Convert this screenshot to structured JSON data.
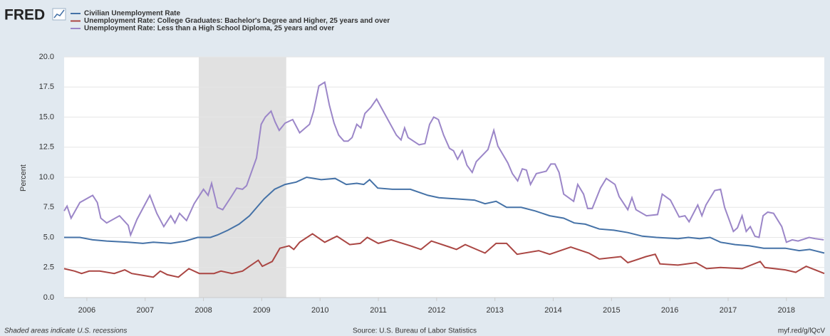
{
  "chart_data": {
    "type": "line",
    "logo": "FRED",
    "y_label": "Percent",
    "annotations": [
      "Shaded areas indicate U.S. recessions",
      "Source: U.S. Bureau of Labor Statistics",
      "myf.red/g/lQcV"
    ],
    "xlim": [
      2005.61,
      2018.65
    ],
    "xticks": [
      2006,
      2007,
      2008,
      2009,
      2010,
      2011,
      2012,
      2013,
      2014,
      2015,
      2016,
      2017,
      2018
    ],
    "ylim": [
      0,
      20
    ],
    "yticks": [
      {
        "value": 0,
        "label": "0.0"
      },
      {
        "value": 2.5,
        "label": "2.5"
      },
      {
        "value": 5,
        "label": "5.0"
      },
      {
        "value": 7.5,
        "label": "7.5"
      },
      {
        "value": 10,
        "label": "10.0"
      },
      {
        "value": 12.5,
        "label": "12.5"
      },
      {
        "value": 15,
        "label": "15.0"
      },
      {
        "value": 17.5,
        "label": "17.5"
      },
      {
        "value": 20,
        "label": "20.0"
      }
    ],
    "grid": true,
    "recessions": [
      [
        2007.92,
        2009.42
      ]
    ],
    "series": [
      {
        "name": "Civilian Unemployment Rate",
        "color": "#4572a7",
        "x": [
          2005.61,
          2005.88,
          2006.1,
          2006.34,
          2006.71,
          2006.96,
          2007.14,
          2007.44,
          2007.69,
          2007.9,
          2008.12,
          2008.24,
          2008.42,
          2008.61,
          2008.79,
          2009.04,
          2009.22,
          2009.4,
          2009.59,
          2009.77,
          2010.02,
          2010.26,
          2010.45,
          2010.63,
          2010.75,
          2010.85,
          2010.99,
          2011.24,
          2011.55,
          2011.85,
          2012.04,
          2012.34,
          2012.65,
          2012.83,
          2013.02,
          2013.2,
          2013.45,
          2013.69,
          2013.94,
          2014.18,
          2014.36,
          2014.55,
          2014.79,
          2015.04,
          2015.28,
          2015.53,
          2015.77,
          2016.14,
          2016.32,
          2016.51,
          2016.69,
          2016.87,
          2017.12,
          2017.36,
          2017.61,
          2017.98,
          2018.22,
          2018.4,
          2018.65
        ],
        "values": [
          5.0,
          5.0,
          4.8,
          4.7,
          4.6,
          4.5,
          4.6,
          4.5,
          4.7,
          5.0,
          5.0,
          5.2,
          5.6,
          6.1,
          6.8,
          8.2,
          9.0,
          9.4,
          9.6,
          10.0,
          9.8,
          9.9,
          9.4,
          9.5,
          9.4,
          9.8,
          9.1,
          9.0,
          9.0,
          8.5,
          8.3,
          8.2,
          8.1,
          7.8,
          8.0,
          7.5,
          7.5,
          7.2,
          6.8,
          6.6,
          6.2,
          6.1,
          5.7,
          5.6,
          5.4,
          5.1,
          5.0,
          4.9,
          5.0,
          4.9,
          5.0,
          4.6,
          4.4,
          4.3,
          4.1,
          4.1,
          3.9,
          4.0,
          3.7
        ]
      },
      {
        "name": "Unemployment Rate: College Graduates: Bachelor's Degree and Higher, 25 years and over",
        "color": "#aa4643",
        "x": [
          2005.61,
          2005.79,
          2005.91,
          2006.04,
          2006.22,
          2006.47,
          2006.65,
          2006.77,
          2007.02,
          2007.14,
          2007.26,
          2007.38,
          2007.57,
          2007.75,
          2007.93,
          2008.18,
          2008.3,
          2008.49,
          2008.67,
          2008.94,
          2009.01,
          2009.18,
          2009.31,
          2009.47,
          2009.55,
          2009.65,
          2009.87,
          2010.08,
          2010.29,
          2010.51,
          2010.69,
          2010.81,
          2011.0,
          2011.22,
          2011.55,
          2011.73,
          2011.91,
          2012.22,
          2012.34,
          2012.49,
          2012.83,
          2013.02,
          2013.2,
          2013.38,
          2013.75,
          2013.94,
          2014.3,
          2014.61,
          2014.79,
          2015.16,
          2015.28,
          2015.59,
          2015.75,
          2015.83,
          2016.14,
          2016.45,
          2016.63,
          2016.87,
          2017.24,
          2017.55,
          2017.63,
          2017.98,
          2018.16,
          2018.34,
          2018.65
        ],
        "values": [
          2.4,
          2.2,
          2.0,
          2.2,
          2.2,
          2.0,
          2.3,
          2.0,
          1.8,
          1.7,
          2.2,
          1.9,
          1.7,
          2.4,
          2.0,
          2.0,
          2.2,
          2.0,
          2.2,
          3.1,
          2.6,
          3.0,
          4.1,
          4.3,
          4.0,
          4.6,
          5.3,
          4.6,
          5.1,
          4.4,
          4.5,
          5.0,
          4.5,
          4.8,
          4.3,
          4.0,
          4.7,
          4.2,
          4.0,
          4.4,
          3.7,
          4.5,
          4.5,
          3.6,
          3.9,
          3.6,
          4.2,
          3.7,
          3.2,
          3.4,
          2.9,
          3.4,
          3.6,
          2.8,
          2.7,
          2.9,
          2.4,
          2.5,
          2.4,
          3.0,
          2.5,
          2.3,
          2.1,
          2.6,
          2.0
        ]
      },
      {
        "name": "Unemployment Rate: Less than a High School Diploma, 25 years and over",
        "color": "#9b86c8",
        "x": [
          2005.61,
          2005.66,
          2005.73,
          2005.88,
          2006.1,
          2006.18,
          2006.24,
          2006.34,
          2006.56,
          2006.71,
          2006.75,
          2006.86,
          2007.08,
          2007.2,
          2007.32,
          2007.44,
          2007.51,
          2007.59,
          2007.71,
          2007.84,
          2008.0,
          2008.08,
          2008.14,
          2008.24,
          2008.33,
          2008.48,
          2008.57,
          2008.67,
          2008.74,
          2008.91,
          2008.99,
          2009.06,
          2009.16,
          2009.23,
          2009.3,
          2009.4,
          2009.53,
          2009.65,
          2009.82,
          2009.89,
          2009.98,
          2010.08,
          2010.16,
          2010.24,
          2010.32,
          2010.41,
          2010.48,
          2010.55,
          2010.63,
          2010.7,
          2010.77,
          2010.87,
          2010.97,
          2011.14,
          2011.31,
          2011.39,
          2011.45,
          2011.51,
          2011.7,
          2011.8,
          2011.88,
          2011.95,
          2012.03,
          2012.12,
          2012.22,
          2012.29,
          2012.36,
          2012.44,
          2012.52,
          2012.61,
          2012.68,
          2012.88,
          2012.98,
          2013.05,
          2013.22,
          2013.3,
          2013.39,
          2013.47,
          2013.54,
          2013.61,
          2013.71,
          2013.88,
          2013.96,
          2014.03,
          2014.1,
          2014.18,
          2014.35,
          2014.42,
          2014.52,
          2014.59,
          2014.67,
          2014.81,
          2014.91,
          2015.06,
          2015.13,
          2015.28,
          2015.35,
          2015.42,
          2015.6,
          2015.79,
          2015.87,
          2016.01,
          2016.16,
          2016.26,
          2016.33,
          2016.48,
          2016.55,
          2016.62,
          2016.77,
          2016.87,
          2016.94,
          2017.09,
          2017.16,
          2017.24,
          2017.31,
          2017.38,
          2017.46,
          2017.53,
          2017.6,
          2017.68,
          2017.78,
          2017.92,
          2018.0,
          2018.1,
          2018.2,
          2018.39,
          2018.49,
          2018.64
        ],
        "values": [
          7.2,
          7.6,
          6.6,
          7.9,
          8.5,
          7.9,
          6.6,
          6.2,
          6.8,
          6.0,
          5.2,
          6.5,
          8.5,
          7.0,
          5.9,
          6.8,
          6.2,
          7.0,
          6.4,
          7.8,
          9.0,
          8.5,
          9.5,
          7.5,
          7.3,
          8.4,
          9.1,
          9.0,
          9.3,
          11.6,
          14.4,
          15.0,
          15.5,
          14.6,
          13.9,
          14.5,
          14.8,
          13.7,
          14.4,
          15.5,
          17.6,
          17.9,
          16.0,
          14.5,
          13.5,
          13.0,
          13.0,
          13.3,
          14.4,
          14.1,
          15.3,
          15.8,
          16.5,
          15.0,
          13.5,
          13.1,
          14.1,
          13.3,
          12.7,
          12.8,
          14.4,
          15.0,
          14.8,
          13.5,
          12.4,
          12.2,
          11.5,
          12.2,
          11.0,
          10.4,
          11.3,
          12.3,
          13.9,
          12.6,
          11.2,
          10.3,
          9.7,
          10.7,
          10.6,
          9.4,
          10.3,
          10.5,
          11.1,
          11.1,
          10.4,
          8.6,
          8.0,
          9.4,
          8.6,
          7.4,
          7.4,
          9.1,
          9.9,
          9.4,
          8.4,
          7.3,
          8.3,
          7.3,
          6.8,
          6.9,
          8.6,
          8.1,
          6.7,
          6.8,
          6.3,
          7.7,
          6.8,
          7.7,
          8.9,
          9.0,
          7.5,
          5.5,
          5.8,
          6.8,
          5.5,
          5.9,
          5.1,
          5.0,
          6.8,
          7.1,
          7.0,
          5.9,
          4.6,
          4.8,
          4.7,
          5.0,
          4.9,
          4.8
        ]
      }
    ]
  }
}
